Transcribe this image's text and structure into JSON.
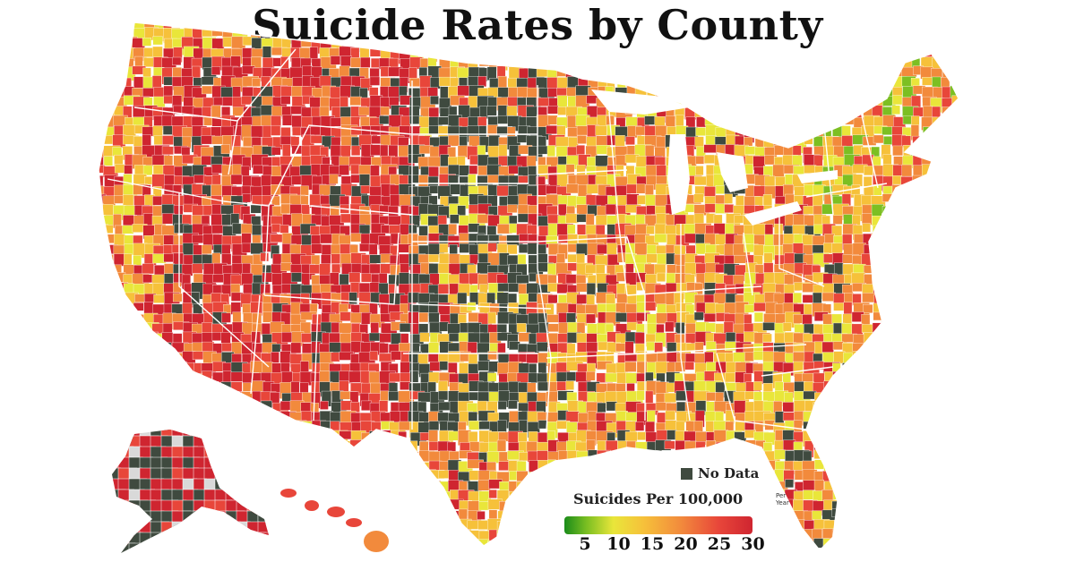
{
  "title": "Suicide Rates by County",
  "legend": {
    "no_data_label": "No Data",
    "scale_title": "Suicides Per 100,000",
    "unit_line1": "Per",
    "unit_line2": "Year",
    "ticks": [
      "5",
      "10",
      "15",
      "20",
      "25",
      "30"
    ],
    "tick_values": [
      5,
      10,
      15,
      20,
      25,
      30
    ],
    "range": [
      3,
      31
    ]
  },
  "colors": {
    "no_data": "#3f4a3f",
    "scale": [
      "#1a8c1a",
      "#7cbf22",
      "#e9e63a",
      "#f6c13a",
      "#f28a3c",
      "#e8463a",
      "#cf2530"
    ],
    "border": "#ffffff",
    "missing": "#d9d9d9"
  }
}
